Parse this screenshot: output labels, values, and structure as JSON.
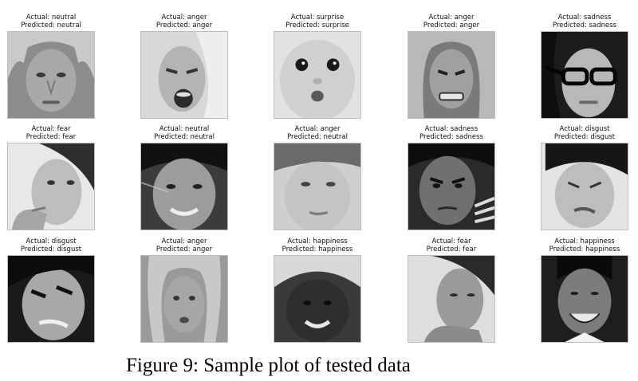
{
  "samples": [
    {
      "actual": "Actual: neutral",
      "predicted": "Predicted: neutral",
      "image": "face-woman-blond-neutral"
    },
    {
      "actual": "Actual: anger",
      "predicted": "Predicted: anger",
      "image": "face-woman-blond-shouting"
    },
    {
      "actual": "Actual: surprise",
      "predicted": "Predicted: surprise",
      "image": "face-baby-surprised"
    },
    {
      "actual": "Actual: anger",
      "predicted": "Predicted: anger",
      "image": "face-woman-grimace"
    },
    {
      "actual": "Actual: sadness",
      "predicted": "Predicted: sadness",
      "image": "face-woman-glasses"
    },
    {
      "actual": "Actual: fear",
      "predicted": "Predicted: fear",
      "image": "face-man-hand-mouth"
    },
    {
      "actual": "Actual: neutral",
      "predicted": "Predicted: neutral",
      "image": "face-man-smiling-dark-hair"
    },
    {
      "actual": "Actual: anger",
      "predicted": "Predicted: neutral",
      "image": "face-boy-neutral"
    },
    {
      "actual": "Actual: sadness",
      "predicted": "Predicted: sadness",
      "image": "face-man-frowning"
    },
    {
      "actual": "Actual: disgust",
      "predicted": "Predicted: disgust",
      "image": "face-boy-disgust"
    },
    {
      "actual": "Actual: disgust",
      "predicted": "Predicted: disgust",
      "image": "face-woman-sneer"
    },
    {
      "actual": "Actual: anger",
      "predicted": "Predicted: anger",
      "image": "face-woman-blond-angry"
    },
    {
      "actual": "Actual: happiness",
      "predicted": "Predicted: happiness",
      "image": "face-woman-dark-smiling"
    },
    {
      "actual": "Actual: fear",
      "predicted": "Predicted: fear",
      "image": "face-man-looking-down"
    },
    {
      "actual": "Actual: happiness",
      "predicted": "Predicted: happiness",
      "image": "face-man-suit-laughing"
    }
  ],
  "figure_caption": "Figure 9: Sample plot of tested data"
}
